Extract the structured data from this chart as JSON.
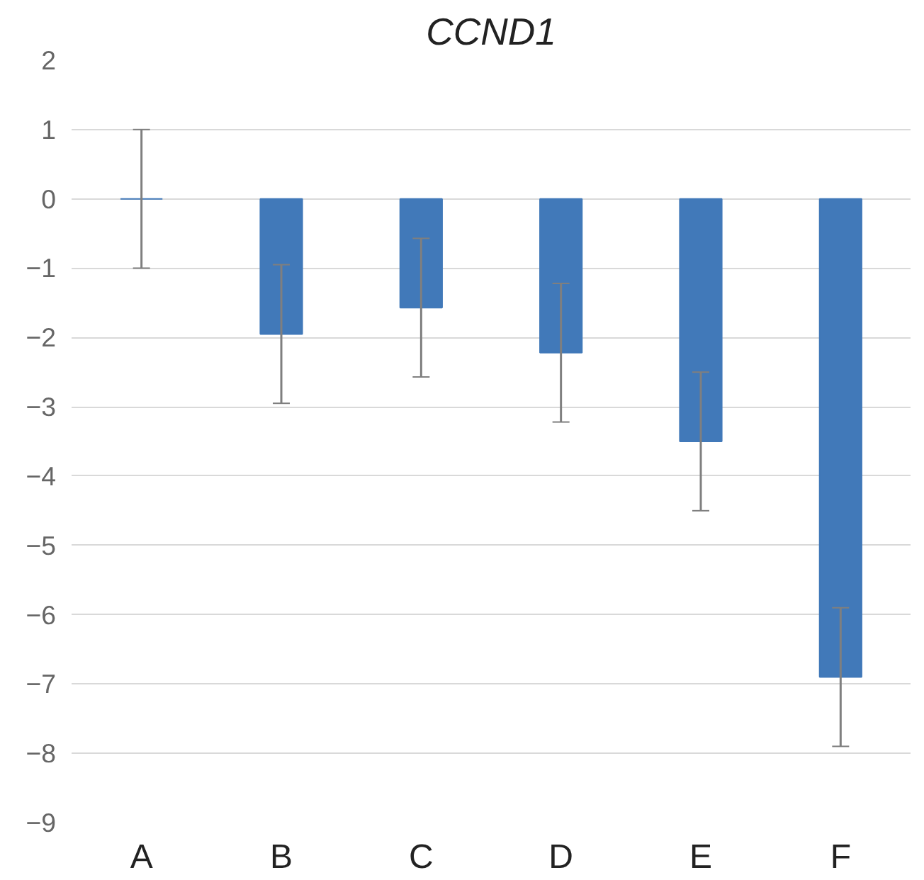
{
  "chart_data": {
    "type": "bar",
    "title": "CCND1",
    "categories": [
      "A",
      "B",
      "C",
      "D",
      "E",
      "F"
    ],
    "values": [
      0,
      -1.95,
      -1.57,
      -2.22,
      -3.5,
      -6.9
    ],
    "errors": [
      1,
      1,
      1,
      1,
      1,
      1
    ],
    "color": "#4179b9",
    "ylim": [
      -9,
      2
    ],
    "yticks": [
      -9,
      -8,
      -7,
      -6,
      -5,
      -4,
      -3,
      -2,
      -1,
      0,
      1,
      2
    ],
    "grid": "y"
  }
}
